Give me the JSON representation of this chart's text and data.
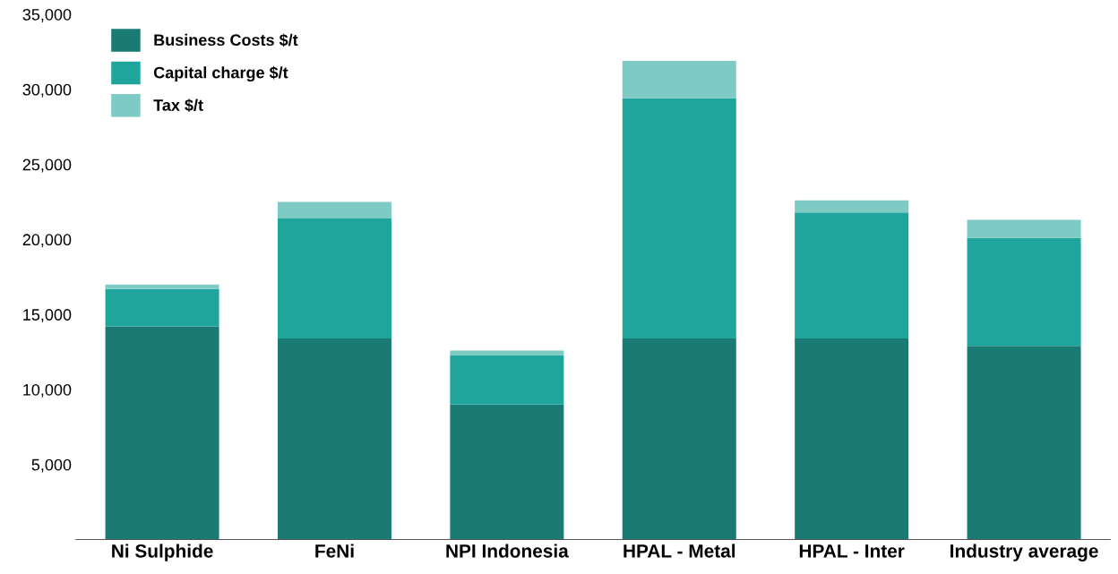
{
  "chart_data": {
    "type": "bar",
    "stacked": true,
    "categories": [
      "Ni Sulphide",
      "FeNi",
      "NPI Indonesia",
      "HPAL - Metal",
      "HPAL - Inter",
      "Industry average"
    ],
    "series": [
      {
        "name": "Business Costs $/t",
        "color": "#1a7a74",
        "values": [
          14200,
          13400,
          9000,
          13400,
          13400,
          12900
        ]
      },
      {
        "name": "Capital charge $/t",
        "color": "#20a59c",
        "values": [
          2500,
          8000,
          3300,
          16000,
          8400,
          7200
        ]
      },
      {
        "name": "Tax $/t",
        "color": "#7ecac4",
        "values": [
          300,
          1100,
          300,
          2500,
          800,
          1200
        ]
      }
    ],
    "ylim": [
      0,
      35000
    ],
    "yticks": [
      {
        "value": 5000,
        "label": "5,000"
      },
      {
        "value": 10000,
        "label": "10,000"
      },
      {
        "value": 15000,
        "label": "15,000"
      },
      {
        "value": 20000,
        "label": "20,000"
      },
      {
        "value": 25000,
        "label": "25,000"
      },
      {
        "value": 30000,
        "label": "30,000"
      },
      {
        "value": 35000,
        "label": "35,000"
      }
    ],
    "grid": false,
    "legend": "top left"
  }
}
